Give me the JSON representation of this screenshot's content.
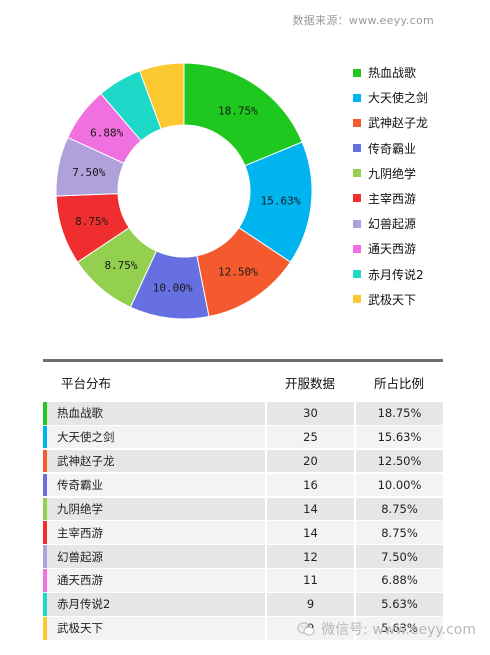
{
  "source_text": "数据来源：www.eeyy.com",
  "chart_data": {
    "type": "pie",
    "categories": [
      "热血战歌",
      "大天使之剑",
      "武神赵子龙",
      "传奇霸业",
      "九阴绝学",
      "主宰西游",
      "幻兽起源",
      "通天西游",
      "赤月传说2",
      "武极天下"
    ],
    "values": [
      30,
      25,
      20,
      16,
      14,
      14,
      12,
      11,
      9,
      9
    ],
    "percent_labels": [
      "18.75%",
      "15.63%",
      "12.50%",
      "10.00%",
      "8.75%",
      "8.75%",
      "7.50%",
      "6.88%",
      "",
      ""
    ],
    "colors": [
      "#1ec81e",
      "#00b4f0",
      "#f45a2e",
      "#6670e0",
      "#94d050",
      "#f02e30",
      "#b0a0dc",
      "#f070e0",
      "#1ed8c8",
      "#fcc830"
    ],
    "start_angle_deg": 0,
    "donut": true
  },
  "table": {
    "headers": [
      "平台分布",
      "开服数据",
      "所占比例"
    ],
    "rows": [
      {
        "name": "热血战歌",
        "count": "30",
        "ratio": "18.75%"
      },
      {
        "name": "大天使之剑",
        "count": "25",
        "ratio": "15.63%"
      },
      {
        "name": "武神赵子龙",
        "count": "20",
        "ratio": "12.50%"
      },
      {
        "name": "传奇霸业",
        "count": "16",
        "ratio": "10.00%"
      },
      {
        "name": "九阴绝学",
        "count": "14",
        "ratio": "8.75%"
      },
      {
        "name": "主宰西游",
        "count": "14",
        "ratio": "8.75%"
      },
      {
        "name": "幻兽起源",
        "count": "12",
        "ratio": "7.50%"
      },
      {
        "name": "通天西游",
        "count": "11",
        "ratio": "6.88%"
      },
      {
        "name": "赤月传说2",
        "count": "9",
        "ratio": "5.63%"
      },
      {
        "name": "武极天下",
        "count": "9",
        "ratio": "5.63%"
      }
    ]
  },
  "watermark": {
    "text": "微信号: www.eeyy.com",
    "icon": "wechat-icon"
  }
}
